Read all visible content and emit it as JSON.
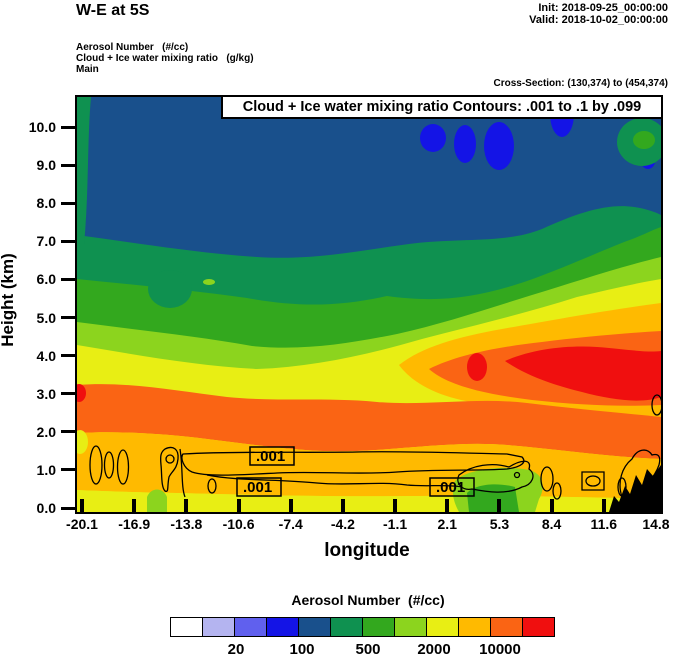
{
  "header": {
    "title": "W-E at 5S",
    "init_label": "Init: 2018-09-25_00:00:00",
    "valid_label": "Valid: 2018-10-02_00:00:00"
  },
  "subheader": {
    "line1": "Aerosol Number   (#/cc)",
    "line2": "Cloud + Ice water mixing ratio   (g/kg)",
    "line3": "Main",
    "cross_section": "Cross-Section: (130,374) to (454,374)"
  },
  "chart_data": {
    "type": "heatmap",
    "subtype": "filled-contour-cross-section",
    "title": "Cloud + Ice water mixing ratio Contours: .001 to .1 by .099",
    "xlabel": "longitude",
    "ylabel": "Height (km)",
    "x_ticks": [
      "-20.1",
      "-16.9",
      "-13.8",
      "-10.6",
      "-7.4",
      "-4.2",
      "-1.1",
      "2.1",
      "5.3",
      "8.4",
      "11.6",
      "14.8"
    ],
    "y_ticks": [
      "10.0",
      "9.0",
      "8.0",
      "7.0",
      "6.0",
      "5.0",
      "4.0",
      "3.0",
      "2.0",
      "1.0",
      "0.0"
    ],
    "xlim": [
      -20.1,
      14.8
    ],
    "ylim": [
      0.0,
      10.9
    ],
    "grid": false,
    "colorbar": {
      "title": "Aerosol Number  (#/cc)",
      "colors": [
        "#ffffff",
        "#b4b4f0",
        "#6060ee",
        "#1414e6",
        "#19508c",
        "#0f9150",
        "#33a81e",
        "#8cd41e",
        "#e8ee14",
        "#ffba00",
        "#fa6414",
        "#f00f0f"
      ],
      "tick_labels": [
        "20",
        "100",
        "500",
        "2000",
        "10000"
      ],
      "label_boundary_indices": [
        2,
        4,
        6,
        8,
        10
      ]
    },
    "contour_overlay": {
      "variable": "Cloud + Ice water mixing ratio",
      "units": "g/kg",
      "levels": [
        0.001,
        0.1
      ],
      "label_text": ".001",
      "label_count": 3
    },
    "field_summary": [
      {
        "height_km": "8.0-10.9",
        "aerosol_number_cc": "100-500",
        "appearance": "navy band with royal-blue 100-200 patches near top center-right"
      },
      {
        "height_km": "6.5-8.0",
        "aerosol_number_cc": "200-500",
        "appearance": "dark green band across section"
      },
      {
        "height_km": "5.0-6.5",
        "aerosol_number_cc": "500-1000",
        "appearance": "green band, dark-green pocket near -16.9 to -13.8"
      },
      {
        "height_km": "4.0-5.0",
        "aerosol_number_cc": "1000-2000",
        "appearance": "yellow-green/yellow, bands slope upward toward east"
      },
      {
        "height_km": "2.8-4.5 east of -4.2",
        "aerosol_number_cc": "5000-20000",
        "appearance": "orange mass with red >10000 cores near 2.1-14.8"
      },
      {
        "height_km": "2.2-3.2",
        "aerosol_number_cc": "5000-10000",
        "appearance": "orange band across full section"
      },
      {
        "height_km": "1.2-2.2",
        "aerosol_number_cc": "2000-5000",
        "appearance": "gold band; thin .001 g/kg cloud contours near 0.6-1.5 km"
      },
      {
        "height_km": "0.0-1.2",
        "aerosol_number_cc": "1000-2000",
        "appearance": "yellow band; green 500-1000 pocket near 2.1-5.3; black terrain at far east"
      }
    ]
  }
}
